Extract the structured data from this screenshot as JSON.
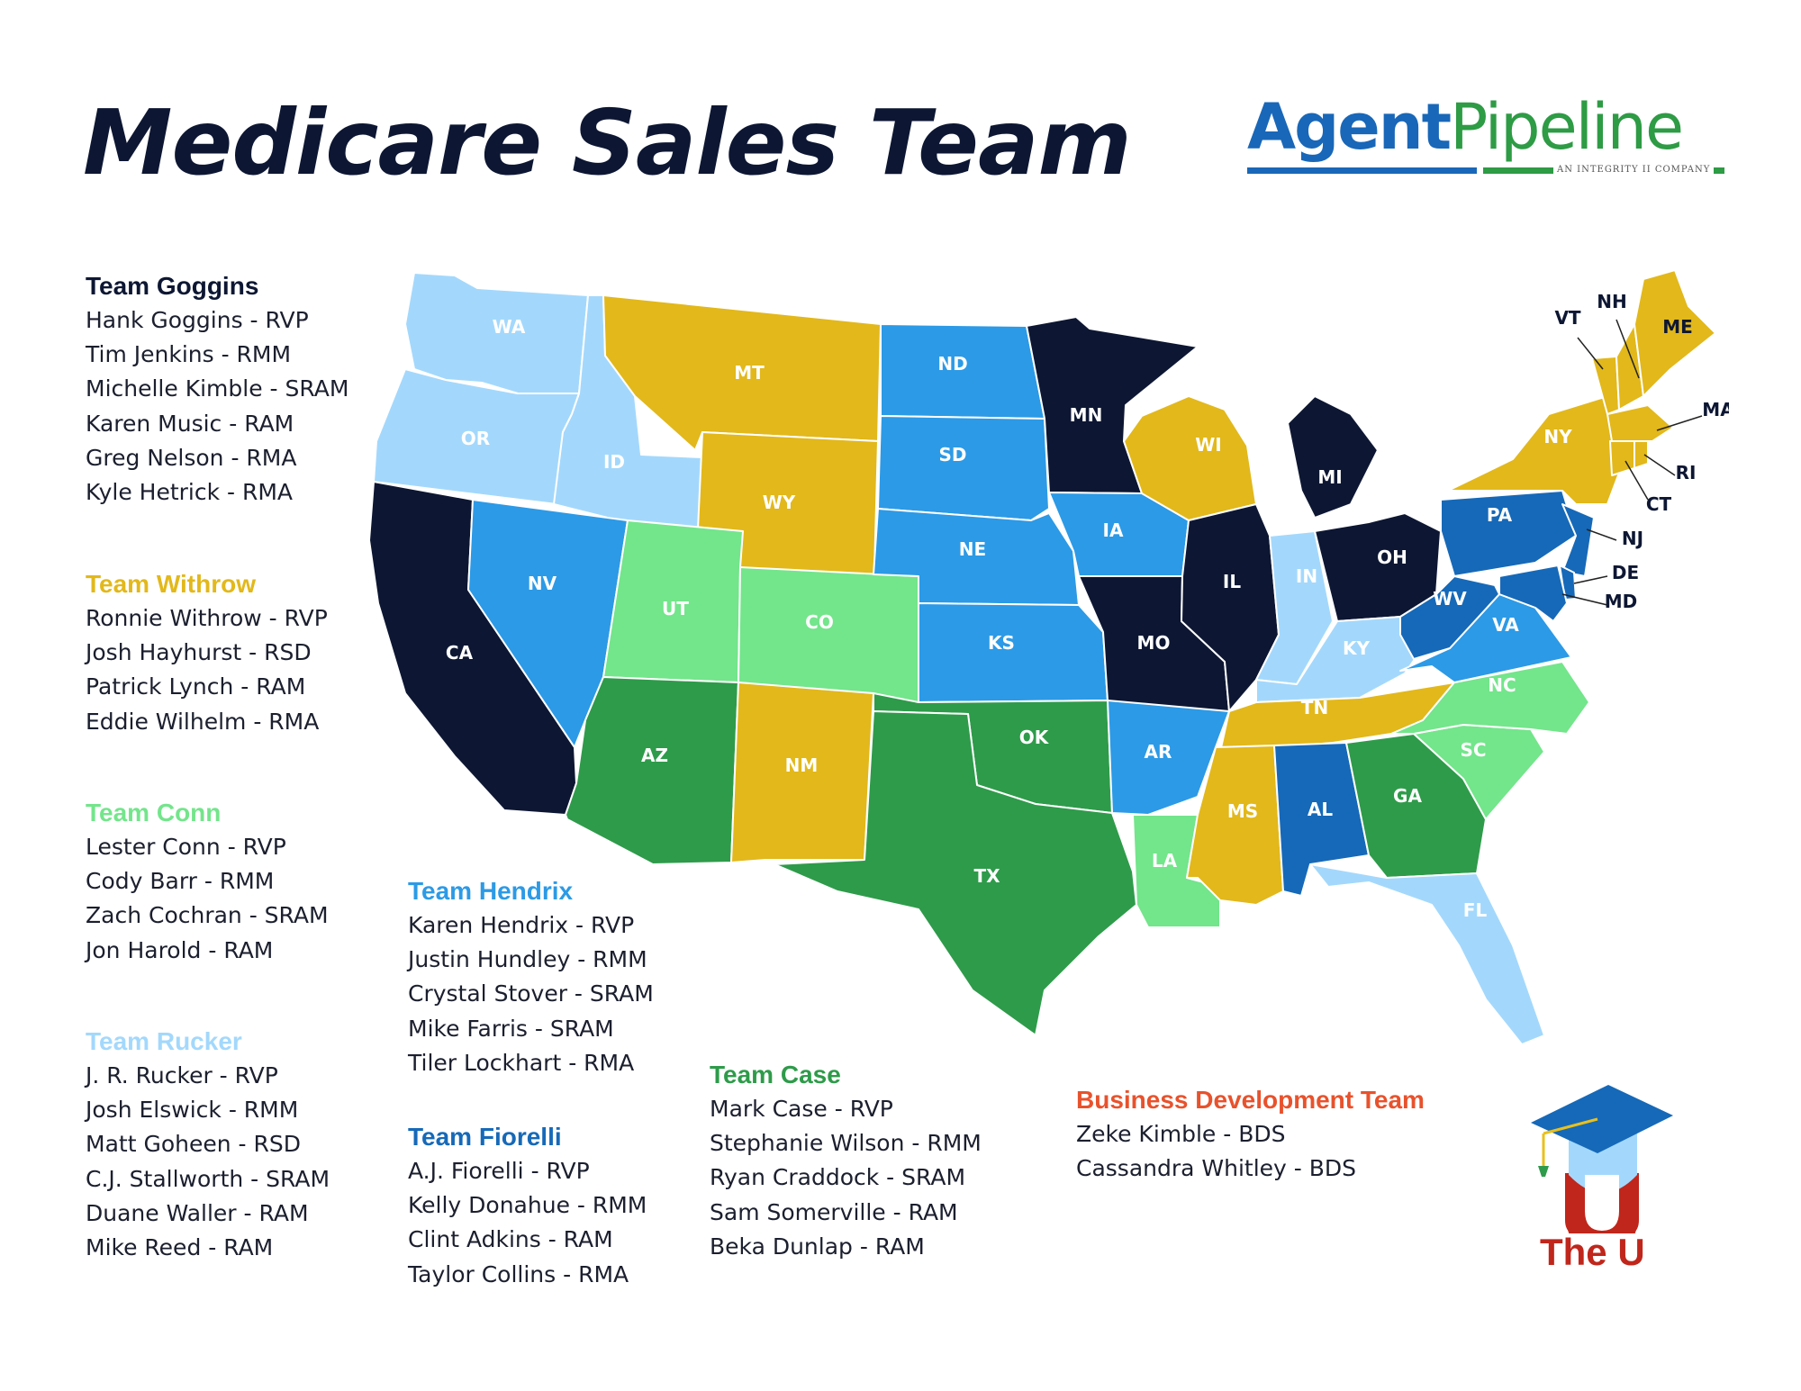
{
  "title": "Medicare Sales Team",
  "logo": {
    "word1": "Agent",
    "word2": "Pipeline",
    "tagline": "AN INTEGRITY ⅠⅠ COMPANY"
  },
  "colors": {
    "navy": "#0d1733",
    "gold": "#e9c01d",
    "lightblue": "#a3d8fc",
    "blue": "#2c9ae6",
    "darkblue": "#1669b8",
    "lightgreen": "#7ced8c",
    "green": "#2e9b4a",
    "orange": "#e8522c"
  },
  "teams": [
    {
      "id": "goggins",
      "name": "Team Goggins",
      "color": "#0d1733",
      "members": [
        "Hank Goggins - RVP",
        "Tim Jenkins - RMM",
        "Michelle Kimble - SRAM",
        "Karen Music - RAM",
        "Greg Nelson - RMA",
        "Kyle Hetrick - RMA"
      ]
    },
    {
      "id": "withrow",
      "name": "Team Withrow",
      "color": "#e2b81b",
      "members": [
        "Ronnie Withrow - RVP",
        "Josh Hayhurst - RSD",
        "Patrick Lynch - RAM",
        "Eddie Wilhelm - RMA"
      ]
    },
    {
      "id": "conn",
      "name": "Team Conn",
      "color": "#73e58b",
      "members": [
        "Lester Conn - RVP",
        "Cody Barr - RMM",
        "Zach Cochran - SRAM",
        "Jon Harold - RAM"
      ]
    },
    {
      "id": "rucker",
      "name": "Team Rucker",
      "color": "#a3d8fc",
      "members": [
        "J. R. Rucker - RVP",
        "Josh Elswick - RMM",
        "Matt Goheen - RSD",
        "C.J. Stallworth - SRAM",
        "Duane Waller - RAM",
        "Mike Reed - RAM"
      ]
    },
    {
      "id": "hendrix",
      "name": "Team Hendrix",
      "color": "#2c9ae6",
      "members": [
        "Karen Hendrix - RVP",
        "Justin Hundley - RMM",
        "Crystal Stover - SRAM",
        "Mike Farris - SRAM",
        "Tiler Lockhart - RMA"
      ]
    },
    {
      "id": "fiorelli",
      "name": "Team Fiorelli",
      "color": "#1669b8",
      "members": [
        "A.J. Fiorelli - RVP",
        "Kelly Donahue - RMM",
        "Clint Adkins - RAM",
        "Taylor Collins - RMA"
      ]
    },
    {
      "id": "case",
      "name": "Team Case",
      "color": "#2e9b4a",
      "members": [
        "Mark Case - RVP",
        "Stephanie Wilson - RMM",
        "Ryan Craddock - SRAM",
        "Sam Somerville - RAM",
        "Beka Dunlap - RAM"
      ]
    },
    {
      "id": "bizdev",
      "name": "Business Development Team",
      "color": "#e8522c",
      "members": [
        "Zeke Kimble - BDS",
        "Cassandra Whitley - BDS"
      ]
    }
  ],
  "states": [
    {
      "code": "WA",
      "team": "rucker"
    },
    {
      "code": "OR",
      "team": "rucker"
    },
    {
      "code": "ID",
      "team": "rucker"
    },
    {
      "code": "CA",
      "team": "goggins"
    },
    {
      "code": "NV",
      "team": "hendrix"
    },
    {
      "code": "MT",
      "team": "withrow"
    },
    {
      "code": "WY",
      "team": "withrow"
    },
    {
      "code": "UT",
      "team": "conn"
    },
    {
      "code": "CO",
      "team": "conn"
    },
    {
      "code": "AZ",
      "team": "case"
    },
    {
      "code": "NM",
      "team": "withrow"
    },
    {
      "code": "ND",
      "team": "hendrix"
    },
    {
      "code": "SD",
      "team": "hendrix"
    },
    {
      "code": "NE",
      "team": "hendrix"
    },
    {
      "code": "KS",
      "team": "hendrix"
    },
    {
      "code": "OK",
      "team": "case"
    },
    {
      "code": "TX",
      "team": "case"
    },
    {
      "code": "MN",
      "team": "goggins"
    },
    {
      "code": "IA",
      "team": "hendrix"
    },
    {
      "code": "MO",
      "team": "goggins"
    },
    {
      "code": "AR",
      "team": "hendrix"
    },
    {
      "code": "LA",
      "team": "conn"
    },
    {
      "code": "WI",
      "team": "withrow"
    },
    {
      "code": "IL",
      "team": "goggins"
    },
    {
      "code": "MI",
      "team": "goggins"
    },
    {
      "code": "IN",
      "team": "rucker"
    },
    {
      "code": "OH",
      "team": "goggins"
    },
    {
      "code": "KY",
      "team": "rucker"
    },
    {
      "code": "TN",
      "team": "withrow"
    },
    {
      "code": "MS",
      "team": "withrow"
    },
    {
      "code": "AL",
      "team": "fiorelli"
    },
    {
      "code": "GA",
      "team": "case"
    },
    {
      "code": "FL",
      "team": "rucker"
    },
    {
      "code": "SC",
      "team": "conn"
    },
    {
      "code": "NC",
      "team": "conn"
    },
    {
      "code": "VA",
      "team": "hendrix"
    },
    {
      "code": "WV",
      "team": "fiorelli"
    },
    {
      "code": "PA",
      "team": "fiorelli"
    },
    {
      "code": "NY",
      "team": "withrow"
    },
    {
      "code": "NJ",
      "team": "fiorelli"
    },
    {
      "code": "DE",
      "team": "fiorelli"
    },
    {
      "code": "MD",
      "team": "fiorelli"
    },
    {
      "code": "VT",
      "team": "withrow"
    },
    {
      "code": "NH",
      "team": "withrow"
    },
    {
      "code": "ME",
      "team": "withrow"
    },
    {
      "code": "MA",
      "team": "withrow"
    },
    {
      "code": "RI",
      "team": "withrow"
    },
    {
      "code": "CT",
      "team": "withrow"
    }
  ],
  "badge": {
    "label": "The U"
  }
}
